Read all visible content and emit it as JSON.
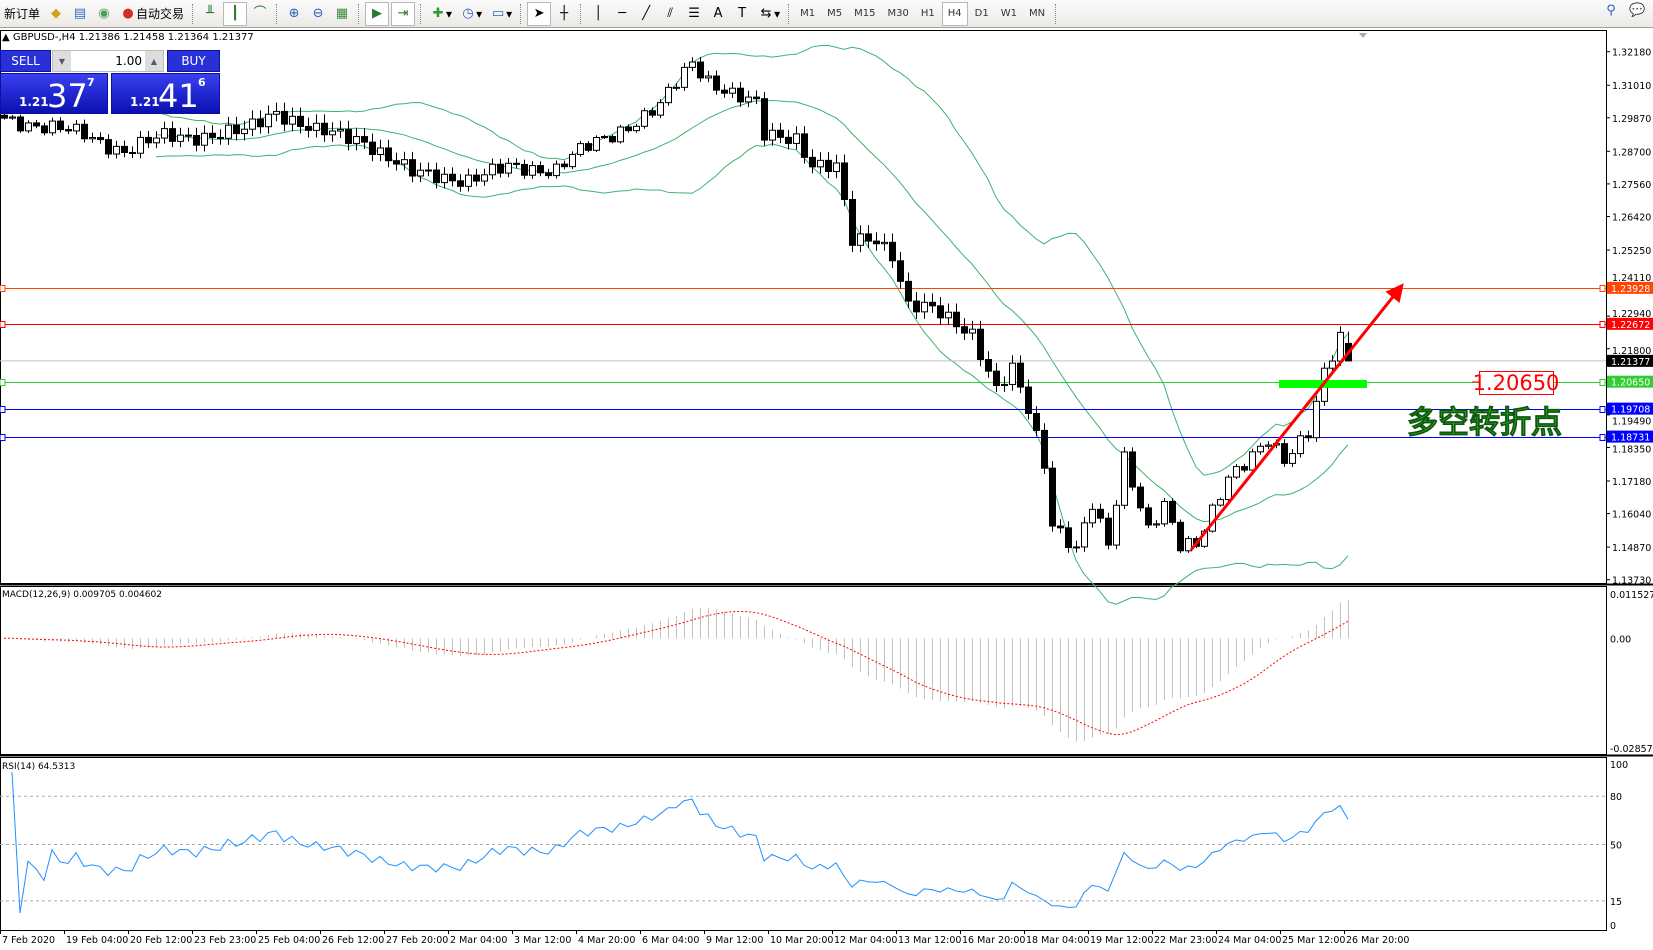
{
  "toolbar": {
    "new_order": "新订单",
    "auto_trading": "自动交易",
    "icons": [
      "new-order-icon",
      "market-watch-icon",
      "navigator-icon",
      "signals-icon",
      "auto-trading-icon",
      "bar-chart-icon",
      "candlestick-icon",
      "line-chart-icon",
      "zoom-in-icon",
      "zoom-out-icon",
      "tile-windows-icon",
      "chart-shift-icon",
      "autoscroll-icon",
      "indicators-icon",
      "periods-icon",
      "templates-icon",
      "cursor-icon",
      "crosshair-icon",
      "vertical-line-icon",
      "horizontal-line-icon",
      "trendline-icon",
      "equidistant-channel-icon",
      "fibonacci-icon",
      "text-icon",
      "text-label-icon",
      "arrows-icon",
      "search-icon",
      "chat-icon"
    ],
    "timeframes": [
      "M1",
      "M5",
      "M15",
      "M30",
      "H1",
      "H4",
      "D1",
      "W1",
      "MN"
    ],
    "active_timeframe": "H4"
  },
  "chart": {
    "info": "GBPUSD-,H4  1.21386 1.21458 1.21364 1.21377",
    "last_bar": {
      "open": 1.21386,
      "high": 1.21458,
      "low": 1.21364,
      "close": 1.21377
    },
    "one_click": {
      "sell_label": "SELL",
      "buy_label": "BUY",
      "lot": "1.00",
      "sell_prefix": "1.21",
      "sell_big": "37",
      "sell_sup": "7",
      "buy_prefix": "1.21",
      "buy_big": "41",
      "buy_sup": "6"
    },
    "price_axis": [
      "1.32180",
      "1.31010",
      "1.29870",
      "1.28700",
      "1.27560",
      "1.26420",
      "1.25250",
      "1.24110",
      "1.22940",
      "1.21800",
      "1.19490",
      "1.18350",
      "1.17180",
      "1.16040",
      "1.14870",
      "1.13730"
    ],
    "price_range": [
      1.1373,
      1.3218
    ],
    "horizontal_lines": [
      {
        "price": "1.23928",
        "color": "#ff4500"
      },
      {
        "price": "1.22672",
        "color": "#ff0000"
      },
      {
        "price": "1.20650",
        "color": "#32cd32"
      },
      {
        "price": "1.19708",
        "color": "#0000ff"
      },
      {
        "price": "1.18731",
        "color": "#0000ff"
      }
    ],
    "bid_line": {
      "price": "1.21377",
      "color": "#c0c0c0"
    },
    "annotation_label": "1.20650",
    "annotation_text": "多空转折点",
    "close_waypoints": [
      [
        0,
        1.2986
      ],
      [
        10,
        1.2927
      ],
      [
        15,
        1.2872
      ],
      [
        20,
        1.292
      ],
      [
        26,
        1.2927
      ],
      [
        30,
        1.2938
      ],
      [
        34,
        1.3012
      ],
      [
        39,
        1.2938
      ],
      [
        45,
        1.2909
      ],
      [
        51,
        1.2791
      ],
      [
        58,
        1.2773
      ],
      [
        63,
        1.281
      ],
      [
        69,
        1.281
      ],
      [
        71,
        1.2854
      ],
      [
        76,
        1.2927
      ],
      [
        82,
        1.303
      ],
      [
        86,
        1.3178
      ],
      [
        88,
        1.3122
      ],
      [
        91,
        1.3074
      ],
      [
        94,
        1.303
      ],
      [
        95,
        1.292
      ],
      [
        99,
        1.292
      ],
      [
        101,
        1.2828
      ],
      [
        104,
        1.281
      ],
      [
        106,
        1.2552
      ],
      [
        109,
        1.2568
      ],
      [
        111,
        1.2515
      ],
      [
        113,
        1.2331
      ],
      [
        116,
        1.2313
      ],
      [
        121,
        1.2239
      ],
      [
        124,
        1.2037
      ],
      [
        126,
        1.2103
      ],
      [
        128,
        1.1963
      ],
      [
        130,
        1.1779
      ],
      [
        131,
        1.1577
      ],
      [
        134,
        1.1485
      ],
      [
        136,
        1.1632
      ],
      [
        138,
        1.1485
      ],
      [
        140,
        1.1797
      ],
      [
        143,
        1.1558
      ],
      [
        145,
        1.1639
      ],
      [
        147,
        1.1485
      ],
      [
        149,
        1.1485
      ],
      [
        151,
        1.1613
      ],
      [
        153,
        1.1742
      ],
      [
        158,
        1.1852
      ],
      [
        160,
        1.1779
      ],
      [
        163,
        1.1897
      ],
      [
        165,
        1.211
      ],
      [
        167,
        1.2221
      ],
      [
        168,
        1.21377
      ]
    ],
    "colors": {
      "bollinger": "#3cb371",
      "candle": "#000000",
      "arrow": "#ff0000",
      "zone": "#00ff00"
    }
  },
  "macd": {
    "label": "MACD(12,26,9) 0.009705 0.004602",
    "axis": [
      "0.011527",
      "0.00",
      "-0.028571"
    ],
    "range": [
      -0.028571,
      0.011527
    ],
    "colors": {
      "histogram": "#c0c0c0",
      "signal": "#ff0000"
    }
  },
  "rsi": {
    "label": "RSI(14) 64.5313",
    "axis": [
      "100",
      "80",
      "50",
      "15",
      "0"
    ],
    "levels": [
      80,
      50,
      15
    ],
    "color": "#1e90ff"
  },
  "time_axis": [
    "7 Feb 2020",
    "19 Feb 04:00",
    "20 Feb 12:00",
    "23 Feb 23:00",
    "25 Feb 04:00",
    "26 Feb 12:00",
    "27 Feb 20:00",
    "2 Mar 04:00",
    "3 Mar 12:00",
    "4 Mar 20:00",
    "6 Mar 04:00",
    "9 Mar 12:00",
    "10 Mar 20:00",
    "12 Mar 04:00",
    "13 Mar 12:00",
    "16 Mar 20:00",
    "18 Mar 04:00",
    "19 Mar 12:00",
    "22 Mar 23:00",
    "24 Mar 04:00",
    "25 Mar 12:00",
    "26 Mar 20:00"
  ]
}
